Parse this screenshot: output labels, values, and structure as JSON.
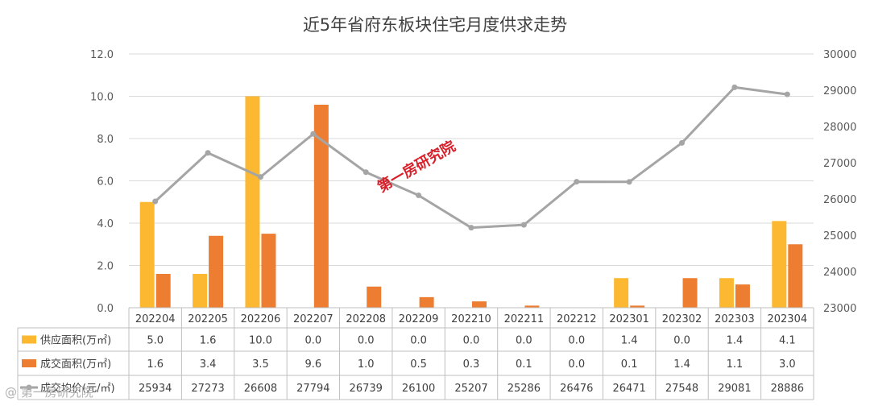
{
  "chart_data": {
    "type": "bar",
    "title": "近5年省府东板块住宅月度供求走势",
    "categories": [
      "202204",
      "202205",
      "202206",
      "202207",
      "202208",
      "202209",
      "202210",
      "202211",
      "202212",
      "202301",
      "202302",
      "202303",
      "202304"
    ],
    "series": [
      {
        "name": "供应面积(万㎡)",
        "type": "bar",
        "axis": "left",
        "color": "#fbb830",
        "values": [
          5.0,
          1.6,
          10.0,
          0.0,
          0.0,
          0.0,
          0.0,
          0.0,
          0.0,
          1.4,
          0.0,
          1.4,
          4.1
        ],
        "labels": [
          "5.0",
          "1.6",
          "10.0",
          "0.0",
          "0.0",
          "0.0",
          "0.0",
          "0.0",
          "0.0",
          "1.4",
          "0.0",
          "1.4",
          "4.1"
        ]
      },
      {
        "name": "成交面积(万㎡)",
        "type": "bar",
        "axis": "left",
        "color": "#ed7d31",
        "values": [
          1.6,
          3.4,
          3.5,
          9.6,
          1.0,
          0.5,
          0.3,
          0.1,
          0.0,
          0.1,
          1.4,
          1.1,
          3.0
        ],
        "labels": [
          "1.6",
          "3.4",
          "3.5",
          "9.6",
          "1.0",
          "0.5",
          "0.3",
          "0.1",
          "0.0",
          "0.1",
          "1.4",
          "1.1",
          "3.0"
        ]
      },
      {
        "name": "成交均价(元/㎡)",
        "type": "line",
        "axis": "right",
        "color": "#a5a5a5",
        "values": [
          25934,
          27273,
          26608,
          27794,
          26739,
          26100,
          25207,
          25286,
          26476,
          26471,
          27548,
          29081,
          28886
        ],
        "labels": [
          "25934",
          "27273",
          "26608",
          "27794",
          "26739",
          "26100",
          "25207",
          "25286",
          "26476",
          "26471",
          "27548",
          "29081",
          "28886"
        ]
      }
    ],
    "y_left": {
      "min": 0,
      "max": 12,
      "ticks": [
        "0.0",
        "2.0",
        "4.0",
        "6.0",
        "8.0",
        "10.0",
        "12.0"
      ]
    },
    "y_right": {
      "min": 23000,
      "max": 30000,
      "ticks": [
        "23000",
        "24000",
        "25000",
        "26000",
        "27000",
        "28000",
        "29000",
        "30000"
      ]
    },
    "grid": true,
    "legend": "data-table",
    "annotations": [
      "第一房研究院"
    ]
  },
  "footer_watermark": "@ 第一房研究院"
}
